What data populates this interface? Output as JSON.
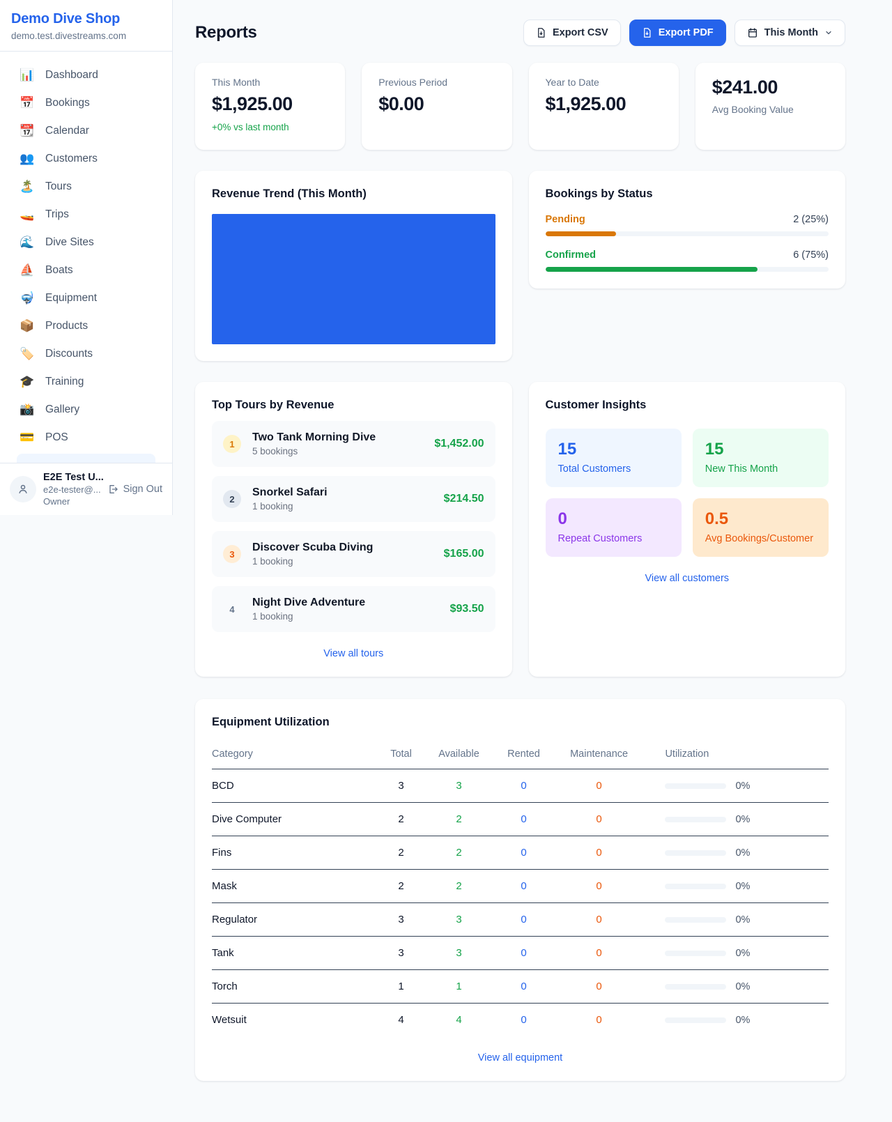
{
  "colors": {
    "brand_blue": "#2563eb",
    "chart_bar_blue": "#2563eb",
    "pending_orange": "#d97706",
    "confirmed_green": "#16a34a",
    "price_green": "#16a34a",
    "repeat_purple": "#8b36e9",
    "avg_orange": "#ea580c",
    "page_bg": "#f8fafc"
  },
  "sidebar": {
    "brand": "Demo Dive Shop",
    "domain": "demo.test.divestreams.com",
    "items": [
      {
        "icon": "bar-chart-icon",
        "emoji": "📊",
        "label": "Dashboard"
      },
      {
        "icon": "calendar-date-icon",
        "emoji": "📅",
        "label": "Bookings"
      },
      {
        "icon": "tear-off-calendar-icon",
        "emoji": "📆",
        "label": "Calendar"
      },
      {
        "icon": "people-icon",
        "emoji": "👥",
        "label": "Customers"
      },
      {
        "icon": "island-icon",
        "emoji": "🏝️",
        "label": "Tours"
      },
      {
        "icon": "speedboat-icon",
        "emoji": "🚤",
        "label": "Trips"
      },
      {
        "icon": "wave-icon",
        "emoji": "🌊",
        "label": "Dive Sites"
      },
      {
        "icon": "sailboat-icon",
        "emoji": "⛵",
        "label": "Boats"
      },
      {
        "icon": "diving-mask-icon",
        "emoji": "🤿",
        "label": "Equipment"
      },
      {
        "icon": "package-icon",
        "emoji": "📦",
        "label": "Products"
      },
      {
        "icon": "tag-icon",
        "emoji": "🏷️",
        "label": "Discounts"
      },
      {
        "icon": "graduation-cap-icon",
        "emoji": "🎓",
        "label": "Training"
      },
      {
        "icon": "camera-icon",
        "emoji": "📸",
        "label": "Gallery"
      },
      {
        "icon": "credit-card-icon",
        "emoji": "💳",
        "label": "POS"
      }
    ],
    "user": {
      "name": "E2E Test U...",
      "email": "e2e-tester@...",
      "role": "Owner",
      "signout_label": "Sign Out"
    }
  },
  "header": {
    "title": "Reports",
    "export_csv_label": "Export CSV",
    "export_pdf_label": "Export PDF",
    "period_label": "This Month"
  },
  "stats": [
    {
      "label": "This Month",
      "value": "$1,925.00",
      "delta": "+0% vs last month"
    },
    {
      "label": "Previous Period",
      "value": "$0.00"
    },
    {
      "label": "Year to Date",
      "value": "$1,925.00"
    },
    {
      "label": "Avg Booking Value",
      "value": "$241.00"
    }
  ],
  "revenue_trend": {
    "title": "Revenue Trend (This Month)",
    "note": "single full-width solid blue bar, no axis labels visible"
  },
  "bookings_by_status": {
    "title": "Bookings by Status",
    "rows": [
      {
        "label": "Pending",
        "count": "2 (25%)",
        "pct": 25
      },
      {
        "label": "Confirmed",
        "count": "6 (75%)",
        "pct": 75
      }
    ]
  },
  "top_tours": {
    "title": "Top Tours by Revenue",
    "items": [
      {
        "rank": "1",
        "name": "Two Tank Morning Dive",
        "bookings": "5 bookings",
        "revenue": "$1,452.00"
      },
      {
        "rank": "2",
        "name": "Snorkel Safari",
        "bookings": "1 booking",
        "revenue": "$214.50"
      },
      {
        "rank": "3",
        "name": "Discover Scuba Diving",
        "bookings": "1 booking",
        "revenue": "$165.00"
      },
      {
        "rank": "4",
        "name": "Night Dive Adventure",
        "bookings": "1 booking",
        "revenue": "$93.50"
      }
    ],
    "view_all": "View all tours"
  },
  "customer_insights": {
    "title": "Customer Insights",
    "boxes": [
      {
        "value": "15",
        "label": "Total Customers"
      },
      {
        "value": "15",
        "label": "New This Month"
      },
      {
        "value": "0",
        "label": "Repeat Customers"
      },
      {
        "value": "0.5",
        "label": "Avg Bookings/Customer"
      }
    ],
    "view_all": "View all customers"
  },
  "equipment": {
    "title": "Equipment Utilization",
    "columns": [
      "Category",
      "Total",
      "Available",
      "Rented",
      "Maintenance",
      "Utilization"
    ],
    "rows": [
      {
        "category": "BCD",
        "total": "3",
        "available": "3",
        "rented": "0",
        "maintenance": "0",
        "utilization": "0%",
        "util_pct": 0
      },
      {
        "category": "Dive Computer",
        "total": "2",
        "available": "2",
        "rented": "0",
        "maintenance": "0",
        "utilization": "0%",
        "util_pct": 0
      },
      {
        "category": "Fins",
        "total": "2",
        "available": "2",
        "rented": "0",
        "maintenance": "0",
        "utilization": "0%",
        "util_pct": 0
      },
      {
        "category": "Mask",
        "total": "2",
        "available": "2",
        "rented": "0",
        "maintenance": "0",
        "utilization": "0%",
        "util_pct": 0
      },
      {
        "category": "Regulator",
        "total": "3",
        "available": "3",
        "rented": "0",
        "maintenance": "0",
        "utilization": "0%",
        "util_pct": 0
      },
      {
        "category": "Tank",
        "total": "3",
        "available": "3",
        "rented": "0",
        "maintenance": "0",
        "utilization": "0%",
        "util_pct": 0
      },
      {
        "category": "Torch",
        "total": "1",
        "available": "1",
        "rented": "0",
        "maintenance": "0",
        "utilization": "0%",
        "util_pct": 0
      },
      {
        "category": "Wetsuit",
        "total": "4",
        "available": "4",
        "rented": "0",
        "maintenance": "0",
        "utilization": "0%",
        "util_pct": 0
      }
    ],
    "view_all": "View all equipment"
  }
}
